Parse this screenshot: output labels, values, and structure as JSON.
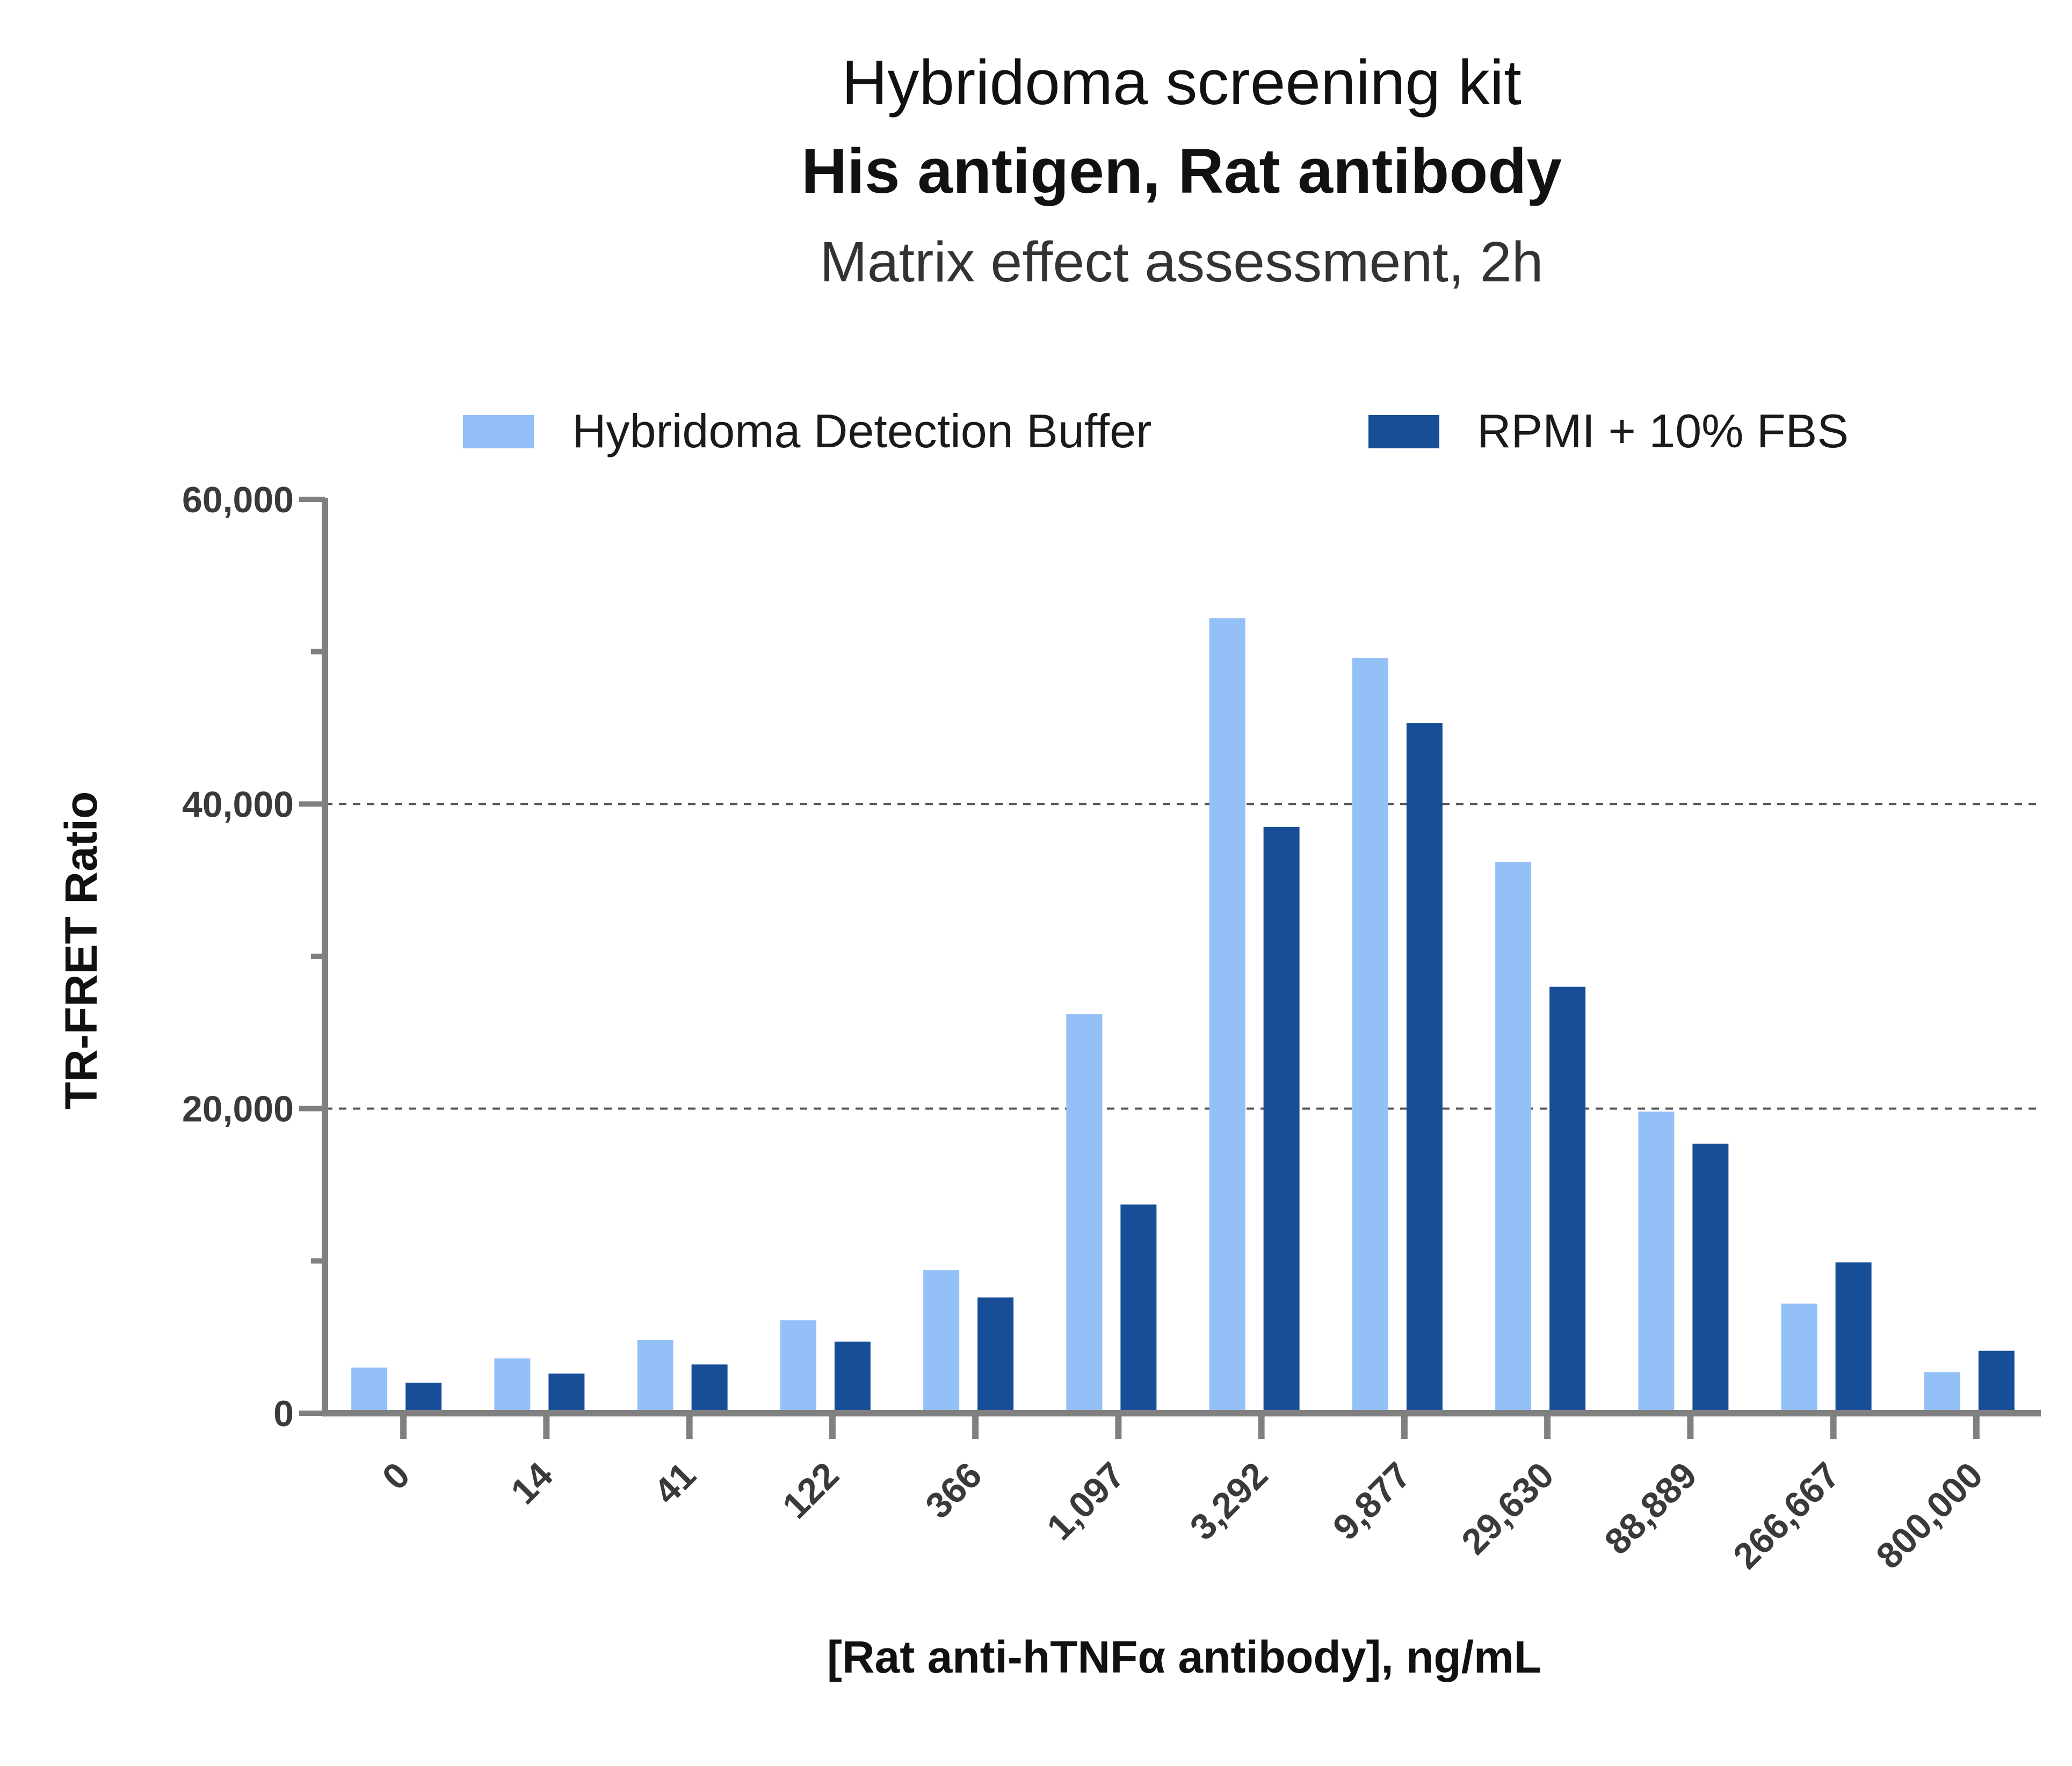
{
  "chart_data": {
    "type": "bar",
    "title": "Hybridoma screening kit",
    "subtitle": "His antigen, Rat antibody",
    "caption": "Matrix effect assessment, 2h",
    "xlabel": "[Rat anti-hTNFα antibody], ng/mL",
    "ylabel": "TR-FRET Ratio",
    "ylim": [
      0,
      60000
    ],
    "yticks": [
      "0",
      "20,000",
      "40,000",
      "60,000"
    ],
    "grid": "dashed at 20,000 and 40,000",
    "legend_position": "top",
    "categories": [
      "0",
      "14",
      "41",
      "122",
      "366",
      "1,097",
      "3,292",
      "9,877",
      "29,630",
      "88,889",
      "266,667",
      "800,000"
    ],
    "series": [
      {
        "name": "Hybridoma Detection Buffer",
        "color": "#94c0f8",
        "values": [
          3000,
          3600,
          4800,
          6100,
          9400,
          26200,
          52200,
          49600,
          36200,
          19800,
          7200,
          2700
        ]
      },
      {
        "name": "RPMI + 10% FBS",
        "color": "#184e98",
        "values": [
          2000,
          2600,
          3200,
          4700,
          7600,
          13700,
          38500,
          45300,
          28000,
          17700,
          9900,
          4100
        ]
      }
    ]
  }
}
